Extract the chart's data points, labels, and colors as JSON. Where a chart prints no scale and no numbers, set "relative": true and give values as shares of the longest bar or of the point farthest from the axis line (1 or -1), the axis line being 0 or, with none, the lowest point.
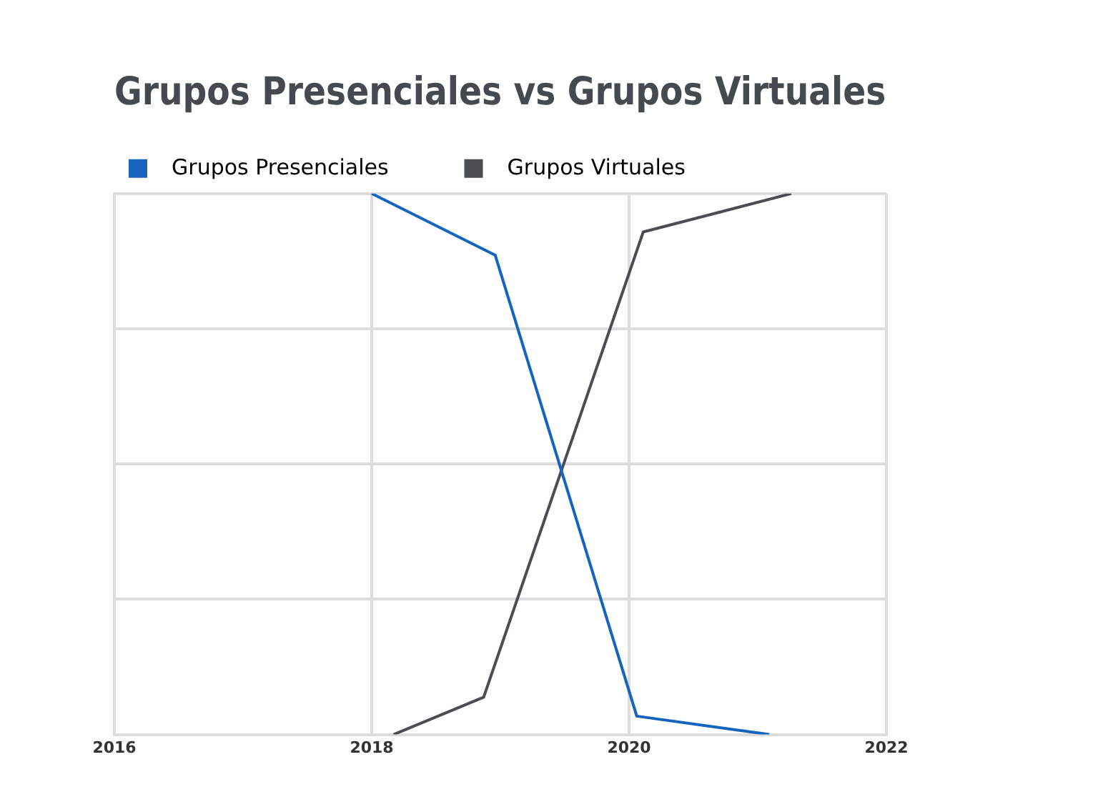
{
  "chart_data": {
    "type": "line",
    "title": "Grupos Presenciales vs Grupos Virtuales",
    "relative": true,
    "xlim": [
      2016,
      2022
    ],
    "xticks": [
      2016,
      2018,
      2020,
      2022
    ],
    "grid": true,
    "legend": "top",
    "marker": "none",
    "line_style": "solid",
    "series": [
      {
        "name": "Grupos Presenciales",
        "color": "#1565c0",
        "x": [
          2018.0,
          2018.96,
          2020.06,
          2021.09
        ],
        "values": [
          1,
          0.886,
          0.034,
          0
        ]
      },
      {
        "name": "Grupos Virtuales",
        "color": "#4a4d52",
        "x": [
          2018.17,
          2018.87,
          2020.11,
          2021.26
        ],
        "values": [
          0,
          0.069,
          0.929,
          1
        ]
      }
    ]
  }
}
